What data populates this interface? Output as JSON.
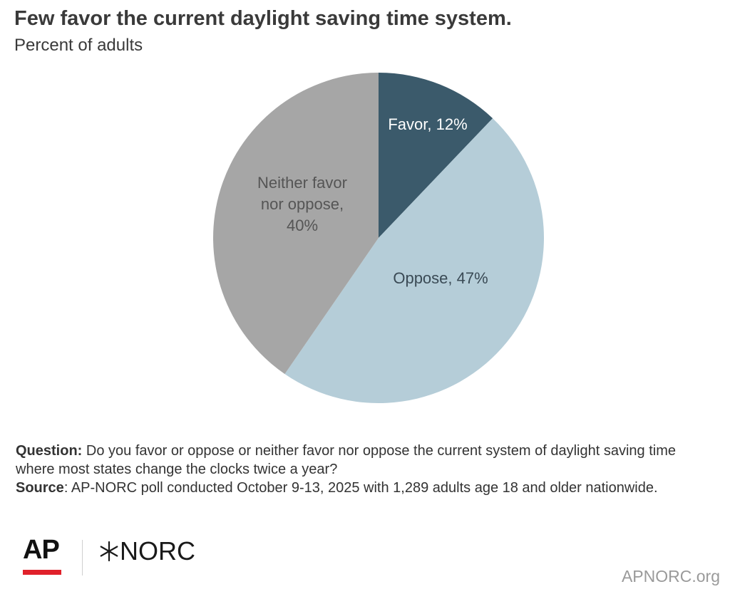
{
  "chart_data": {
    "type": "pie",
    "title": "Few favor the current daylight saving time system.",
    "subtitle": "Percent of adults",
    "slices": [
      {
        "label": "Favor, 12%",
        "value": 12,
        "color": "#3b5a6b",
        "text_color": "#ffffff"
      },
      {
        "label": "Oppose, 47%",
        "value": 47,
        "color": "#b5cdd8",
        "text_color": "#3a4a55"
      },
      {
        "label": "Neither favor nor oppose, 40%",
        "value": 40,
        "color": "#a6a6a6",
        "text_color": "#555555"
      }
    ],
    "start_angle_deg": 0,
    "direction": "clockwise"
  },
  "notes": {
    "question_label": "Question:",
    "question_text": " Do you favor or oppose or neither favor nor oppose the current system of daylight saving time where most states change the clocks twice a year?",
    "source_label": "Source",
    "source_text": ": AP-NORC poll conducted October 9-13, 2025 with 1,289 adults age 18 and older nationwide."
  },
  "footer": {
    "ap_logo_text": "AP",
    "norc_logo_text": "NORC",
    "site": "APNORC.org",
    "ap_accent": "#e0212b"
  }
}
